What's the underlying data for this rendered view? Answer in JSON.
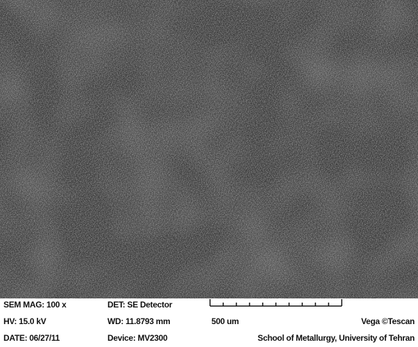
{
  "info": {
    "sem_mag": "SEM MAG: 100 x",
    "det": "DET: SE Detector",
    "hv": "HV:  15.0 kV",
    "wd": "WD: 11.8793 mm",
    "date": "DATE: 06/27/11",
    "device": "Device: MV2300",
    "scale": "500 um",
    "brand": "Vega ©Tescan",
    "institution": "School of Metallurgy, University of Tehran"
  }
}
